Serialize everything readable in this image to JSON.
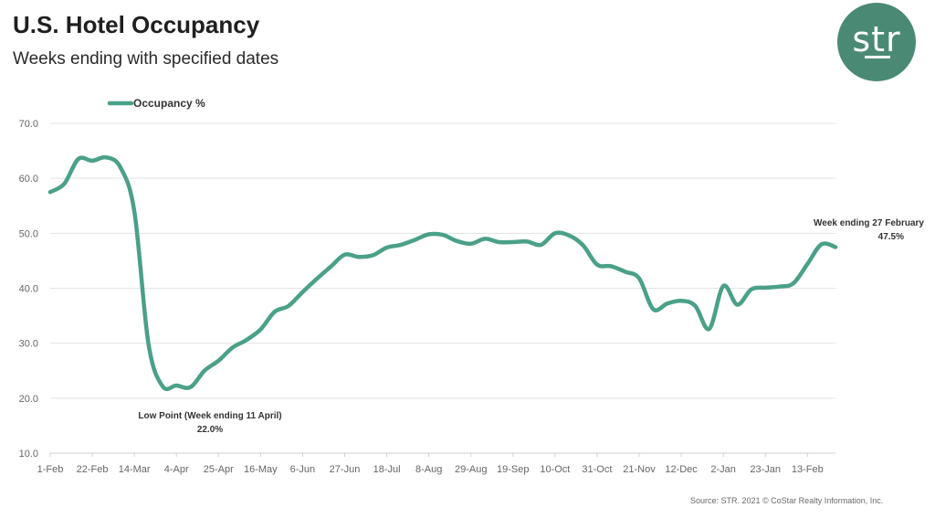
{
  "header": {
    "title": "U.S. Hotel Occupancy",
    "subtitle": "Weeks ending with specified dates"
  },
  "logo": {
    "text": "str",
    "color": "#4a8a74"
  },
  "source": "Source: STR. 2021 © CoStar Realty Information, Inc.",
  "colors": {
    "line": "#4aa088",
    "grid": "#e3e3e3"
  },
  "chart_data": {
    "type": "line",
    "title": "U.S. Hotel Occupancy",
    "subtitle": "Weeks ending with specified dates",
    "xlabel": "",
    "ylabel": "",
    "ylim": [
      10,
      70
    ],
    "yticks": [
      "70.0",
      "60.0",
      "50.0",
      "40.0",
      "30.0",
      "20.0",
      "10.0"
    ],
    "xticks": [
      "1-Feb",
      "22-Feb",
      "14-Mar",
      "4-Apr",
      "25-Apr",
      "16-May",
      "6-Jun",
      "27-Jun",
      "18-Jul",
      "8-Aug",
      "29-Aug",
      "19-Sep",
      "10-Oct",
      "31-Oct",
      "21-Nov",
      "12-Dec",
      "2-Jan",
      "23-Jan",
      "13-Feb"
    ],
    "grid": true,
    "legend": {
      "position": "top-left",
      "entries": [
        "Occupancy %"
      ]
    },
    "series": [
      {
        "name": "Occupancy %",
        "x": [
          "1-Feb",
          "8-Feb",
          "15-Feb",
          "22-Feb",
          "29-Feb",
          "7-Mar",
          "14-Mar",
          "21-Mar",
          "28-Mar",
          "4-Apr",
          "11-Apr",
          "18-Apr",
          "25-Apr",
          "2-May",
          "9-May",
          "16-May",
          "23-May",
          "30-May",
          "6-Jun",
          "13-Jun",
          "20-Jun",
          "27-Jun",
          "4-Jul",
          "11-Jul",
          "18-Jul",
          "25-Jul",
          "1-Aug",
          "8-Aug",
          "15-Aug",
          "22-Aug",
          "29-Aug",
          "5-Sep",
          "12-Sep",
          "19-Sep",
          "26-Sep",
          "3-Oct",
          "10-Oct",
          "17-Oct",
          "24-Oct",
          "31-Oct",
          "7-Nov",
          "14-Nov",
          "21-Nov",
          "28-Nov",
          "5-Dec",
          "12-Dec",
          "19-Dec",
          "26-Dec",
          "2-Jan",
          "9-Jan",
          "16-Jan",
          "23-Jan",
          "30-Jan",
          "6-Feb",
          "13-Feb",
          "20-Feb",
          "27-Feb"
        ],
        "values": [
          57.5,
          59.0,
          63.5,
          63.2,
          63.8,
          62.0,
          54.0,
          30.0,
          22.2,
          22.3,
          22.0,
          25.0,
          26.8,
          29.2,
          30.6,
          32.5,
          35.7,
          36.8,
          39.3,
          41.7,
          43.9,
          46.1,
          45.7,
          46.0,
          47.4,
          47.9,
          48.8,
          49.8,
          49.7,
          48.6,
          48.1,
          49.0,
          48.4,
          48.4,
          48.5,
          47.9,
          50.0,
          49.6,
          47.8,
          44.3,
          44.0,
          43.0,
          41.8,
          36.2,
          37.2,
          37.7,
          36.8,
          32.6,
          40.4,
          37.0,
          39.8,
          40.1,
          40.3,
          40.9,
          44.4,
          48.0,
          47.5
        ]
      }
    ],
    "annotations": [
      {
        "label": "Low Point (Week ending 11 April)",
        "value": "22.0%"
      },
      {
        "label": "Week ending 27 February",
        "value": "47.5%"
      }
    ]
  }
}
